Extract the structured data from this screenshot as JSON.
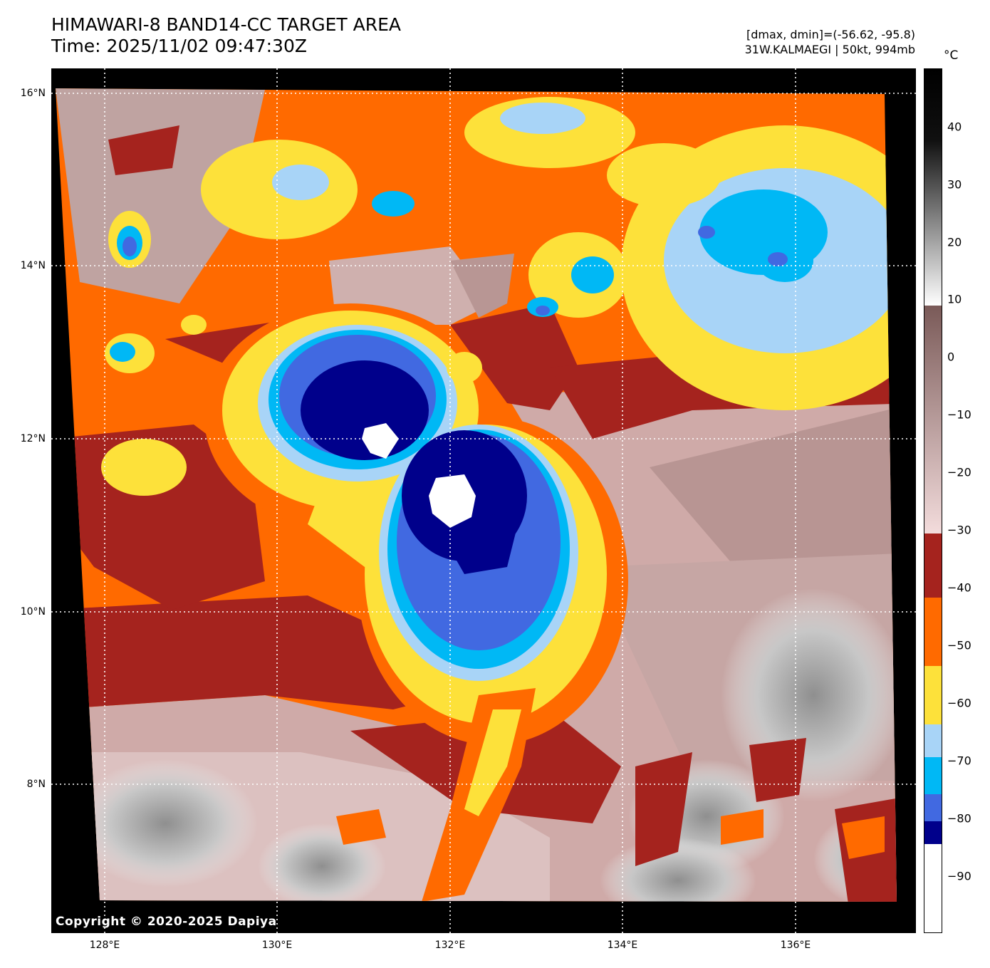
{
  "title": {
    "line1": "HIMAWARI-8 BAND14-CC TARGET AREA",
    "line2": "Time: 2025/11/02 09:47:30Z"
  },
  "stats": {
    "line1": "[dmax, dmin]=(-56.62, -95.8)",
    "line2": "31W.KALMAEGI | 50kt, 994mb"
  },
  "copyright": "Copyright © 2020-2025 Dapiya",
  "map": {
    "lat_labels": [
      "16°N",
      "14°N",
      "12°N",
      "10°N",
      "8°N"
    ],
    "lon_labels": [
      "128°E",
      "130°E",
      "132°E",
      "134°E",
      "136°E"
    ]
  },
  "colorbar": {
    "unit": "°C",
    "tick_labels": [
      "40",
      "30",
      "20",
      "10",
      "0",
      "−10",
      "−20",
      "−30",
      "−40",
      "−50",
      "−60",
      "−70",
      "−80",
      "−90"
    ],
    "colors": {
      "warm_top": "#000000",
      "warm_bottom": "#ffffff",
      "brown_top": "#7a5a58",
      "brown_bottom": "#f3dcdc",
      "m30_m40": "#a5231e",
      "m40_m50": "#ff6a00",
      "m50_m60": "#fde13a",
      "m60_m65": "#a8d4f7",
      "m65_m75": "#00b8f5",
      "m75_m80": "#4169e1",
      "m80_m85": "#00008b",
      "below_m85": "#ffffff"
    }
  }
}
